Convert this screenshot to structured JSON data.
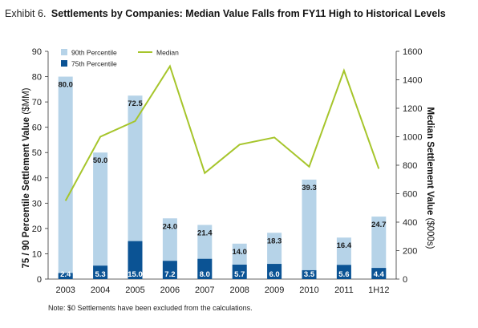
{
  "header": {
    "prefix": "Exhibit 6.",
    "title": "Settlements by Companies:  Median Value Falls from FY11 High to Historical Levels"
  },
  "footnote": "Note: $0 Settlements have been excluded from the calculations.",
  "colors": {
    "p90": "#b6d3e8",
    "p75": "#0b5394",
    "median": "#a6c52b"
  },
  "chart_data": {
    "type": "bar",
    "categories": [
      "2003",
      "2004",
      "2005",
      "2006",
      "2007",
      "2008",
      "2009",
      "2010",
      "2011",
      "1H12"
    ],
    "series": [
      {
        "name": "90th Percentile",
        "type": "bar",
        "axis": "left",
        "values": [
          80.0,
          50.0,
          72.5,
          24.0,
          21.4,
          14.0,
          18.3,
          39.3,
          16.4,
          24.7
        ],
        "labels": [
          "80.0",
          "50.0",
          "72.5",
          "24.0",
          "21.4",
          "14.0",
          "18.3",
          "39.3",
          "16.4",
          "24.7"
        ]
      },
      {
        "name": "75th Percentile",
        "type": "bar",
        "axis": "left",
        "values": [
          2.4,
          5.3,
          15.0,
          7.2,
          8.0,
          5.7,
          6.0,
          3.5,
          5.6,
          4.4
        ],
        "labels": [
          "2.4",
          "5.3",
          "15.0",
          "7.2",
          "8.0",
          "5.7",
          "6.0",
          "3.5",
          "5.6",
          "4.4"
        ]
      },
      {
        "name": "Median",
        "type": "line",
        "axis": "right",
        "values": [
          550,
          1000,
          1110,
          1495,
          745,
          945,
          995,
          790,
          1465,
          775
        ]
      }
    ],
    "ylabel": "75 / 90 Percentile Settlement Value",
    "ylabel_unit": " ($MM)",
    "ylim": [
      0,
      90
    ],
    "yticks": [
      "0",
      "10",
      "20",
      "30",
      "40",
      "50",
      "60",
      "70",
      "80",
      "90"
    ],
    "y2label": "Median Settlement Value",
    "y2label_unit": " ($000s)",
    "y2lim": [
      0,
      1600
    ],
    "y2ticks": [
      "0",
      "200",
      "400",
      "600",
      "800",
      "1000",
      "1200",
      "1400",
      "1600"
    ],
    "grid": false,
    "legend_position": "top-left"
  }
}
